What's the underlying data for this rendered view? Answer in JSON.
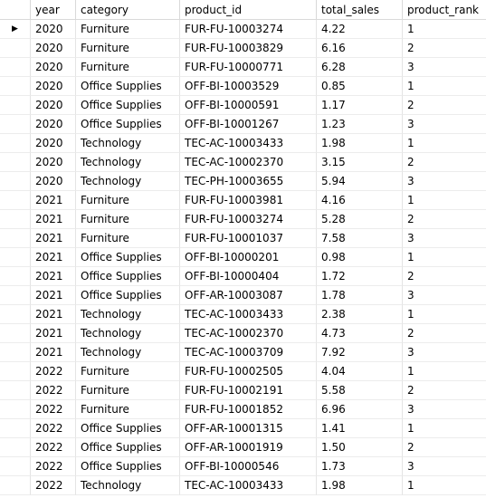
{
  "columns": [
    "year",
    "category",
    "product_id",
    "total_sales",
    "product_rank"
  ],
  "selected_row_marker": "▶",
  "rows": [
    [
      "2020",
      "Furniture",
      "FUR-FU-10003274",
      "4.22",
      "1"
    ],
    [
      "2020",
      "Furniture",
      "FUR-FU-10003829",
      "6.16",
      "2"
    ],
    [
      "2020",
      "Furniture",
      "FUR-FU-10000771",
      "6.28",
      "3"
    ],
    [
      "2020",
      "Office Supplies",
      "OFF-BI-10003529",
      "0.85",
      "1"
    ],
    [
      "2020",
      "Office Supplies",
      "OFF-BI-10000591",
      "1.17",
      "2"
    ],
    [
      "2020",
      "Office Supplies",
      "OFF-BI-10001267",
      "1.23",
      "3"
    ],
    [
      "2020",
      "Technology",
      "TEC-AC-10003433",
      "1.98",
      "1"
    ],
    [
      "2020",
      "Technology",
      "TEC-AC-10002370",
      "3.15",
      "2"
    ],
    [
      "2020",
      "Technology",
      "TEC-PH-10003655",
      "5.94",
      "3"
    ],
    [
      "2021",
      "Furniture",
      "FUR-FU-10003981",
      "4.16",
      "1"
    ],
    [
      "2021",
      "Furniture",
      "FUR-FU-10003274",
      "5.28",
      "2"
    ],
    [
      "2021",
      "Furniture",
      "FUR-FU-10001037",
      "7.58",
      "3"
    ],
    [
      "2021",
      "Office Supplies",
      "OFF-BI-10000201",
      "0.98",
      "1"
    ],
    [
      "2021",
      "Office Supplies",
      "OFF-BI-10000404",
      "1.72",
      "2"
    ],
    [
      "2021",
      "Office Supplies",
      "OFF-AR-10003087",
      "1.78",
      "3"
    ],
    [
      "2021",
      "Technology",
      "TEC-AC-10003433",
      "2.38",
      "1"
    ],
    [
      "2021",
      "Technology",
      "TEC-AC-10002370",
      "4.73",
      "2"
    ],
    [
      "2021",
      "Technology",
      "TEC-AC-10003709",
      "7.92",
      "3"
    ],
    [
      "2022",
      "Furniture",
      "FUR-FU-10002505",
      "4.04",
      "1"
    ],
    [
      "2022",
      "Furniture",
      "FUR-FU-10002191",
      "5.58",
      "2"
    ],
    [
      "2022",
      "Furniture",
      "FUR-FU-10001852",
      "6.96",
      "3"
    ],
    [
      "2022",
      "Office Supplies",
      "OFF-AR-10001315",
      "1.41",
      "1"
    ],
    [
      "2022",
      "Office Supplies",
      "OFF-AR-10001919",
      "1.50",
      "2"
    ],
    [
      "2022",
      "Office Supplies",
      "OFF-BI-10000546",
      "1.73",
      "3"
    ],
    [
      "2022",
      "Technology",
      "TEC-AC-10003433",
      "1.98",
      "1"
    ]
  ]
}
